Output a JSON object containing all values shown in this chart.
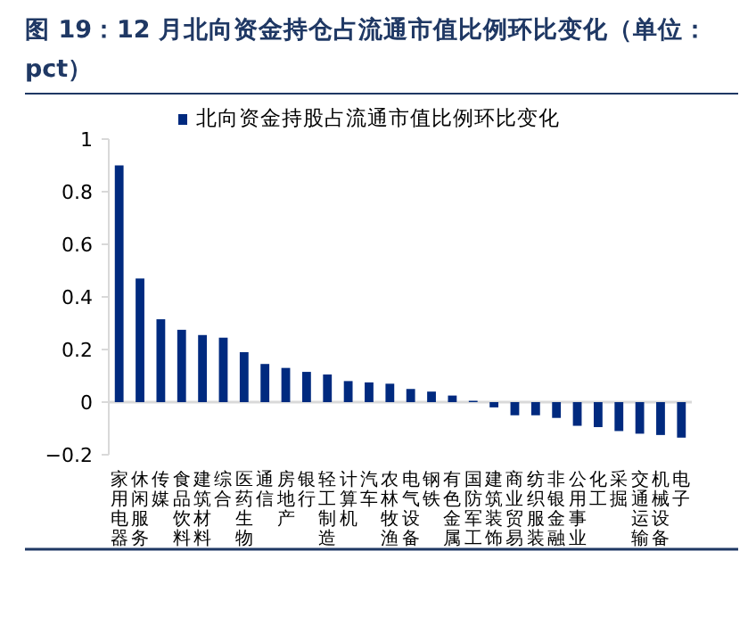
{
  "chart_data": {
    "type": "bar",
    "title": "图 19：12 月北向资金持仓占流通市值比例环比变化（单位：pct）",
    "categories": [
      "家用电器",
      "休闲服务",
      "传媒",
      "食品饮料",
      "建筑材料",
      "综合",
      "医药生物",
      "通信",
      "房地产",
      "银行",
      "轻工制造",
      "计算机",
      "汽车",
      "农林牧渔",
      "电气设备",
      "钢铁",
      "有色金属",
      "国防军工",
      "建筑装饰",
      "商业贸易",
      "纺织服装",
      "非银金融",
      "公用事业",
      "化工",
      "采掘",
      "交通运输",
      "机械设备",
      "电子"
    ],
    "series": [
      {
        "name": "北向资金持股占流通市值比例环比变化",
        "color": "#002a7f",
        "values": [
          0.9,
          0.47,
          0.315,
          0.275,
          0.255,
          0.245,
          0.19,
          0.145,
          0.13,
          0.115,
          0.105,
          0.08,
          0.075,
          0.07,
          0.05,
          0.04,
          0.025,
          0.005,
          -0.02,
          -0.05,
          -0.05,
          -0.06,
          -0.09,
          -0.095,
          -0.11,
          -0.12,
          -0.125,
          -0.135
        ]
      }
    ],
    "ylim": [
      -0.2,
      1
    ],
    "yticks": [
      -0.2,
      0,
      0.2,
      0.4,
      0.6,
      0.8,
      1
    ],
    "legend": "top"
  }
}
